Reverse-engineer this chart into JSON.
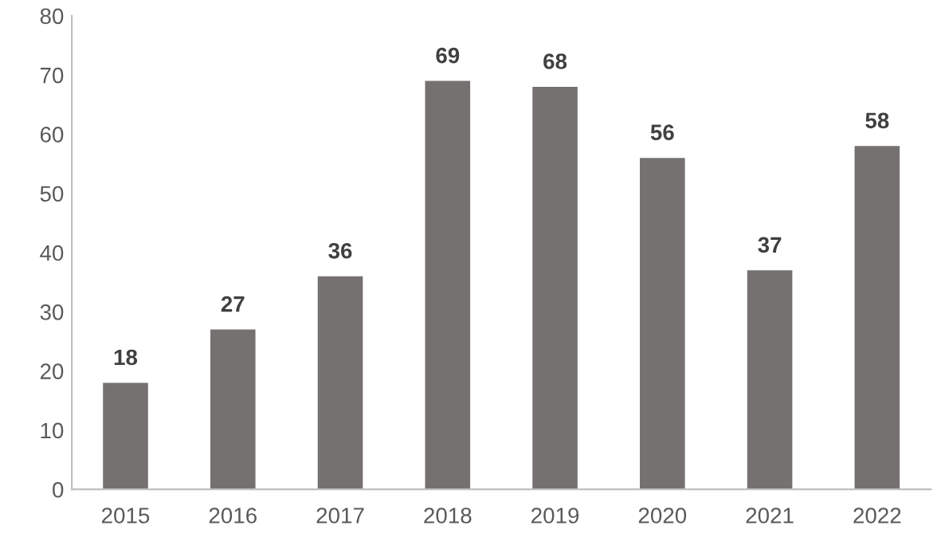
{
  "chart_data": {
    "type": "bar",
    "categories": [
      "2015",
      "2016",
      "2017",
      "2018",
      "2019",
      "2020",
      "2021",
      "2022"
    ],
    "values": [
      18,
      27,
      36,
      69,
      68,
      56,
      37,
      58
    ],
    "color": "#767171",
    "ylim": [
      0,
      80
    ],
    "yticks": [
      0,
      10,
      20,
      30,
      40,
      50,
      60,
      70,
      80
    ],
    "data_labels": true,
    "grid": false,
    "legend": false
  }
}
